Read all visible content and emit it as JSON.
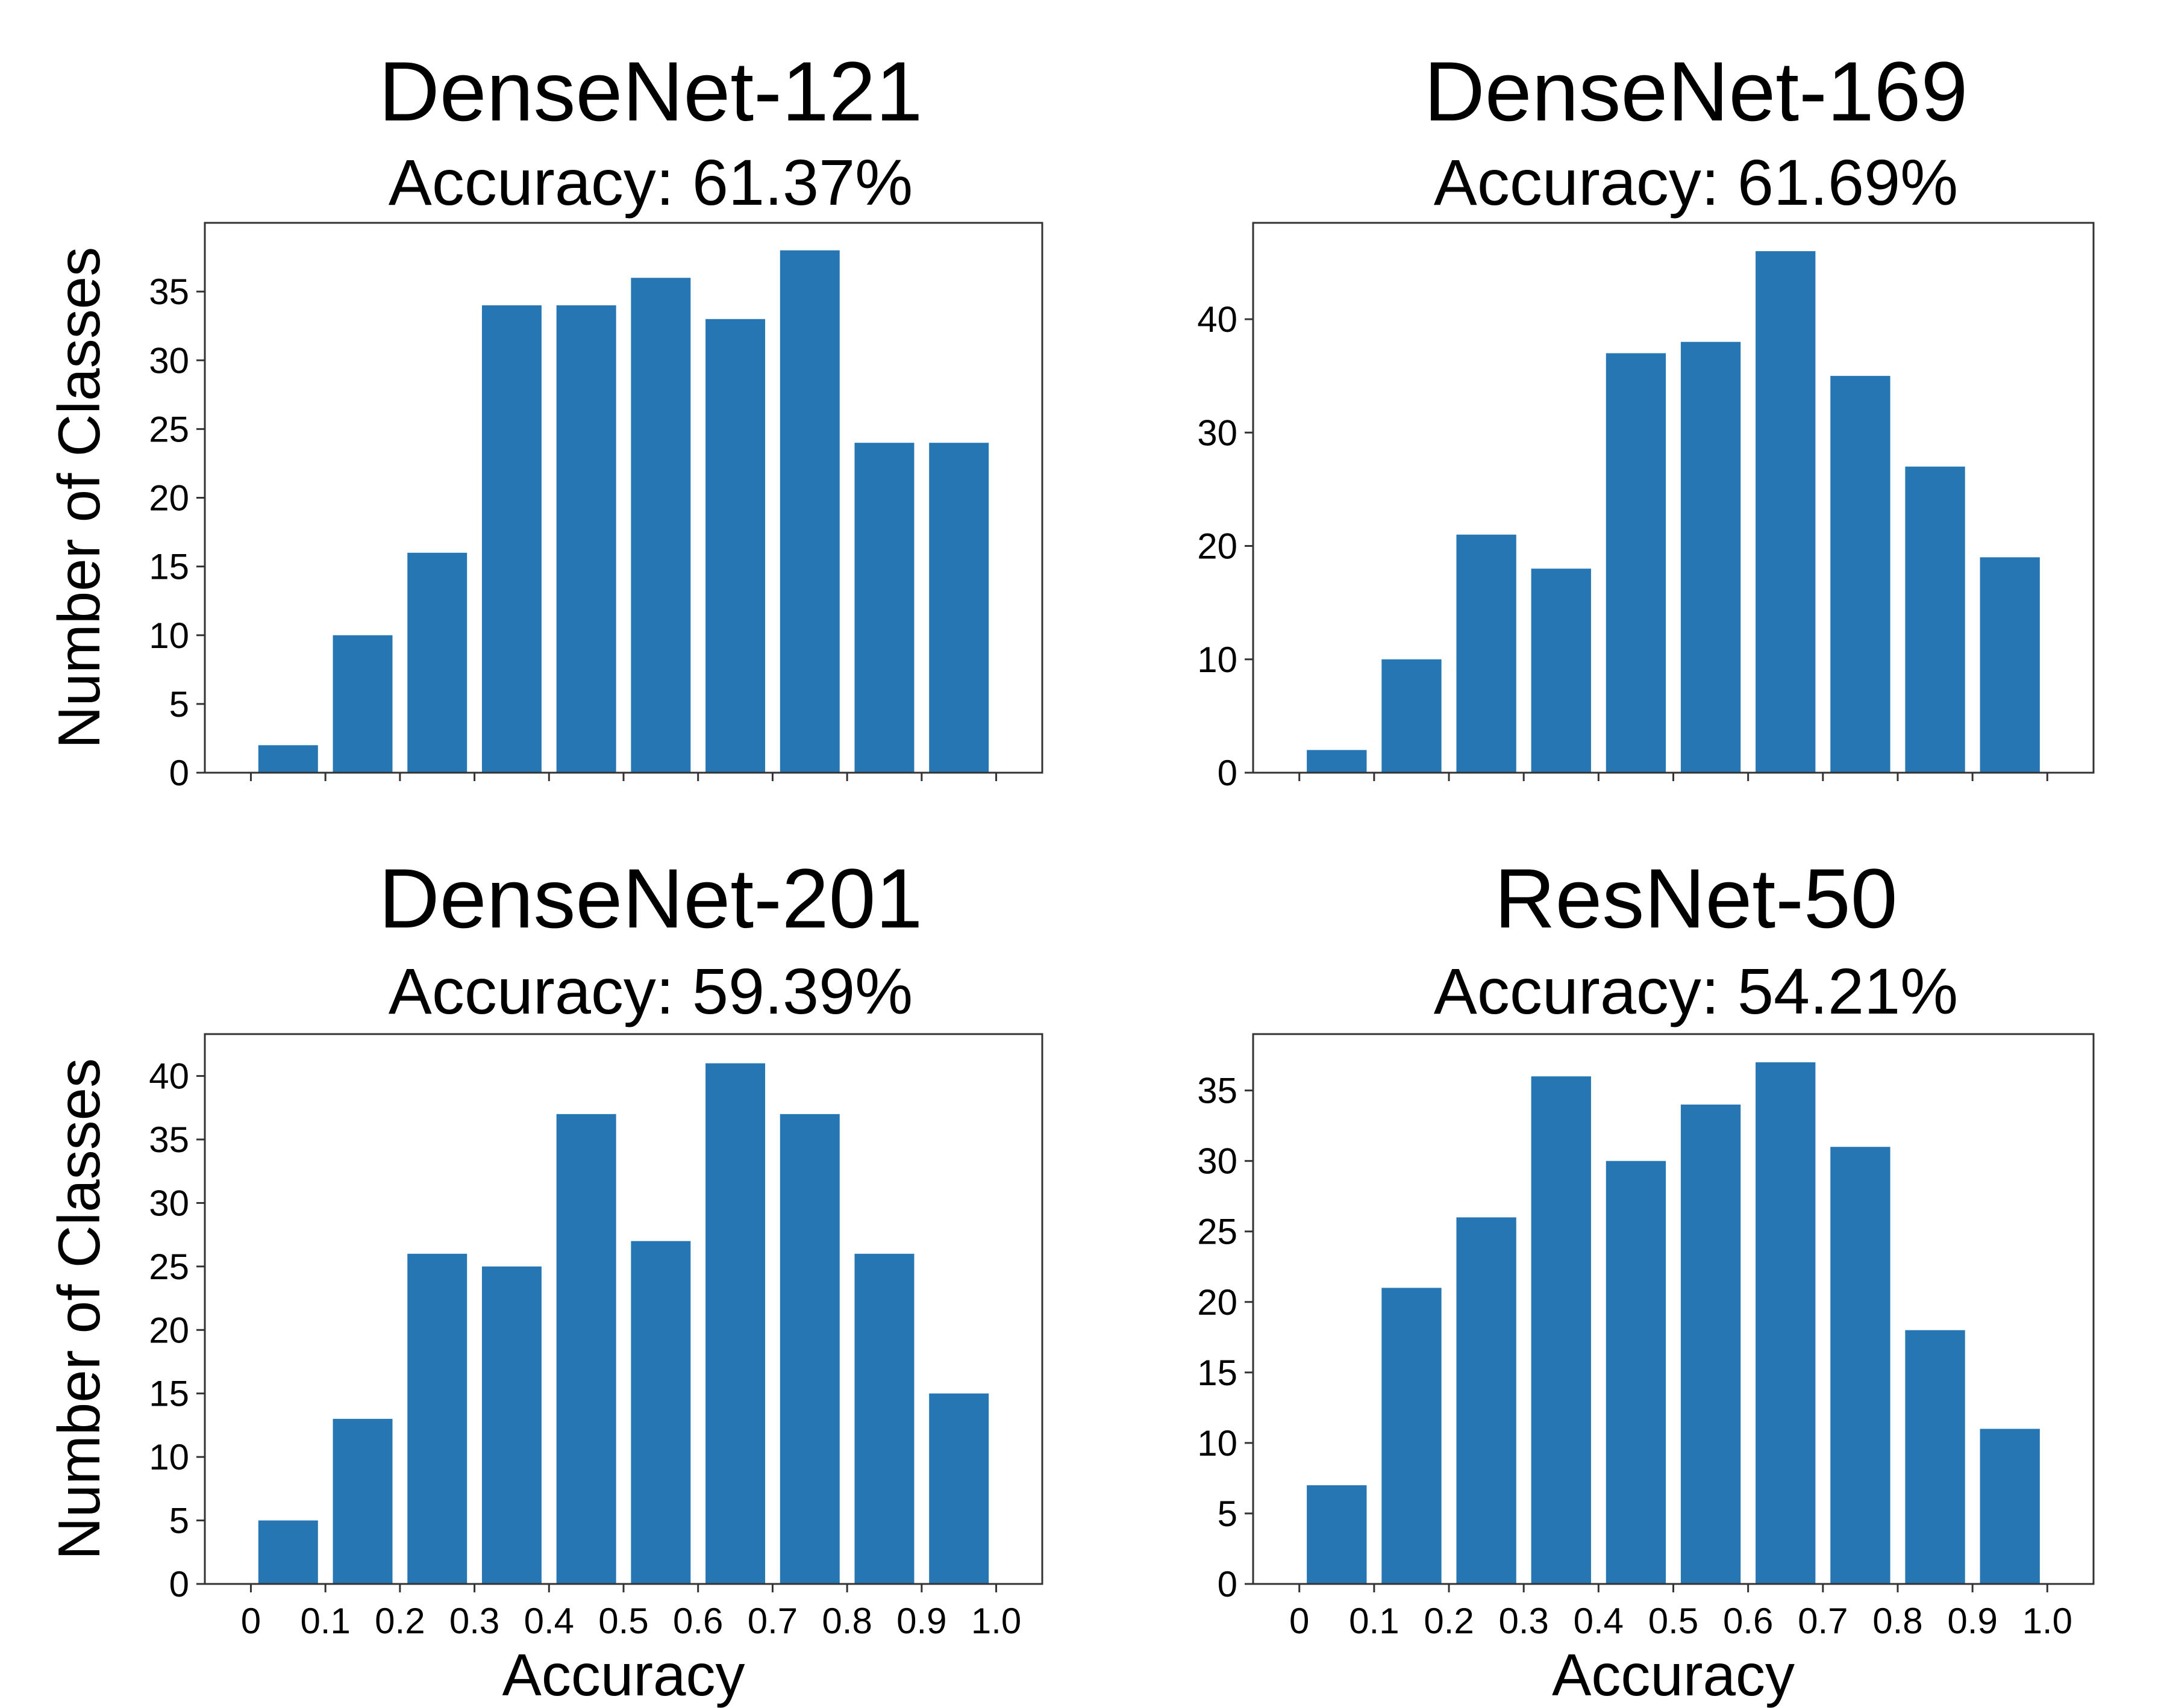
{
  "chart_data": [
    {
      "type": "bar",
      "title": "DenseNet-121",
      "subtitle": "Accuracy: 61.37%",
      "xlabel": "",
      "ylabel": "Number of Classes",
      "categories": [
        "0-0.1",
        "0.1-0.2",
        "0.2-0.3",
        "0.3-0.4",
        "0.4-0.5",
        "0.5-0.6",
        "0.6-0.7",
        "0.7-0.8",
        "0.8-0.9",
        "0.9-1.0"
      ],
      "values": [
        2,
        10,
        16,
        34,
        34,
        36,
        33,
        38,
        24,
        24
      ],
      "ylim": [
        0,
        40
      ],
      "yticks": [
        "0",
        "5",
        "10",
        "15",
        "20",
        "25",
        "30",
        "35"
      ],
      "xticks": [],
      "bar_color": "#2776b4",
      "grid": false
    },
    {
      "type": "bar",
      "title": "DenseNet-169",
      "subtitle": "Accuracy: 61.69%",
      "xlabel": "",
      "ylabel": "",
      "categories": [
        "0-0.1",
        "0.1-0.2",
        "0.2-0.3",
        "0.3-0.4",
        "0.4-0.5",
        "0.5-0.6",
        "0.6-0.7",
        "0.7-0.8",
        "0.8-0.9",
        "0.9-1.0"
      ],
      "values": [
        2,
        10,
        21,
        18,
        37,
        38,
        46,
        35,
        27,
        19
      ],
      "ylim": [
        0,
        48.5
      ],
      "yticks": [
        "0",
        "10",
        "20",
        "30",
        "40"
      ],
      "xticks": [],
      "bar_color": "#2776b4",
      "grid": false
    },
    {
      "type": "bar",
      "title": "DenseNet-201",
      "subtitle": "Accuracy: 59.39%",
      "xlabel": "Accuracy",
      "ylabel": "Number of Classes",
      "categories": [
        "0-0.1",
        "0.1-0.2",
        "0.2-0.3",
        "0.3-0.4",
        "0.4-0.5",
        "0.5-0.6",
        "0.6-0.7",
        "0.7-0.8",
        "0.8-0.9",
        "0.9-1.0"
      ],
      "values": [
        5,
        13,
        26,
        25,
        37,
        27,
        41,
        37,
        26,
        15
      ],
      "ylim": [
        0,
        43.3
      ],
      "yticks": [
        "0",
        "5",
        "10",
        "15",
        "20",
        "25",
        "30",
        "35",
        "40"
      ],
      "xticks": [
        "0",
        "0.1",
        "0.2",
        "0.3",
        "0.4",
        "0.5",
        "0.6",
        "0.7",
        "0.8",
        "0.9",
        "1.0"
      ],
      "bar_color": "#2776b4",
      "grid": false
    },
    {
      "type": "bar",
      "title": "ResNet-50",
      "subtitle": "Accuracy: 54.21%",
      "xlabel": "Accuracy",
      "ylabel": "",
      "categories": [
        "0-0.1",
        "0.1-0.2",
        "0.2-0.3",
        "0.3-0.4",
        "0.4-0.5",
        "0.5-0.6",
        "0.6-0.7",
        "0.7-0.8",
        "0.8-0.9",
        "0.9-1.0"
      ],
      "values": [
        7,
        21,
        26,
        36,
        30,
        34,
        37,
        31,
        18,
        11
      ],
      "ylim": [
        0,
        39
      ],
      "yticks": [
        "0",
        "5",
        "10",
        "15",
        "20",
        "25",
        "30",
        "35"
      ],
      "xticks": [
        "0",
        "0.1",
        "0.2",
        "0.3",
        "0.4",
        "0.5",
        "0.6",
        "0.7",
        "0.8",
        "0.9",
        "1.0"
      ],
      "bar_color": "#2776b4",
      "grid": false
    }
  ]
}
